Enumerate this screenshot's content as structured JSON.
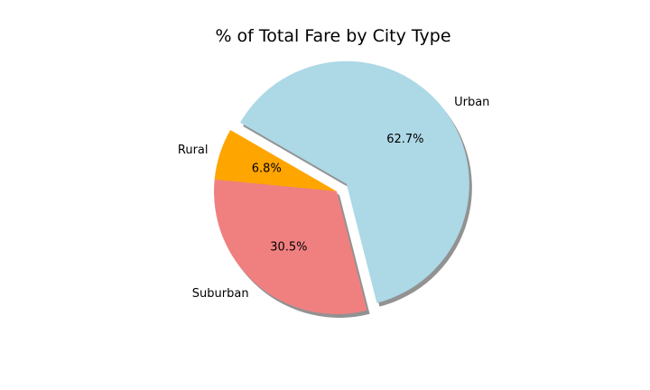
{
  "chart_data": {
    "type": "pie",
    "title": "% of Total Fare by City Type",
    "slices": [
      {
        "label": "Rural",
        "value": 6.8,
        "pct_label": "6.8%",
        "color": "#ffa500",
        "explode": false
      },
      {
        "label": "Suburban",
        "value": 30.5,
        "pct_label": "30.5%",
        "color": "#f08080",
        "explode": false
      },
      {
        "label": "Urban",
        "value": 62.7,
        "pct_label": "62.7%",
        "color": "#add8e6",
        "explode": true
      }
    ],
    "start_angle": 150,
    "counterclock": true,
    "shadow": true
  }
}
